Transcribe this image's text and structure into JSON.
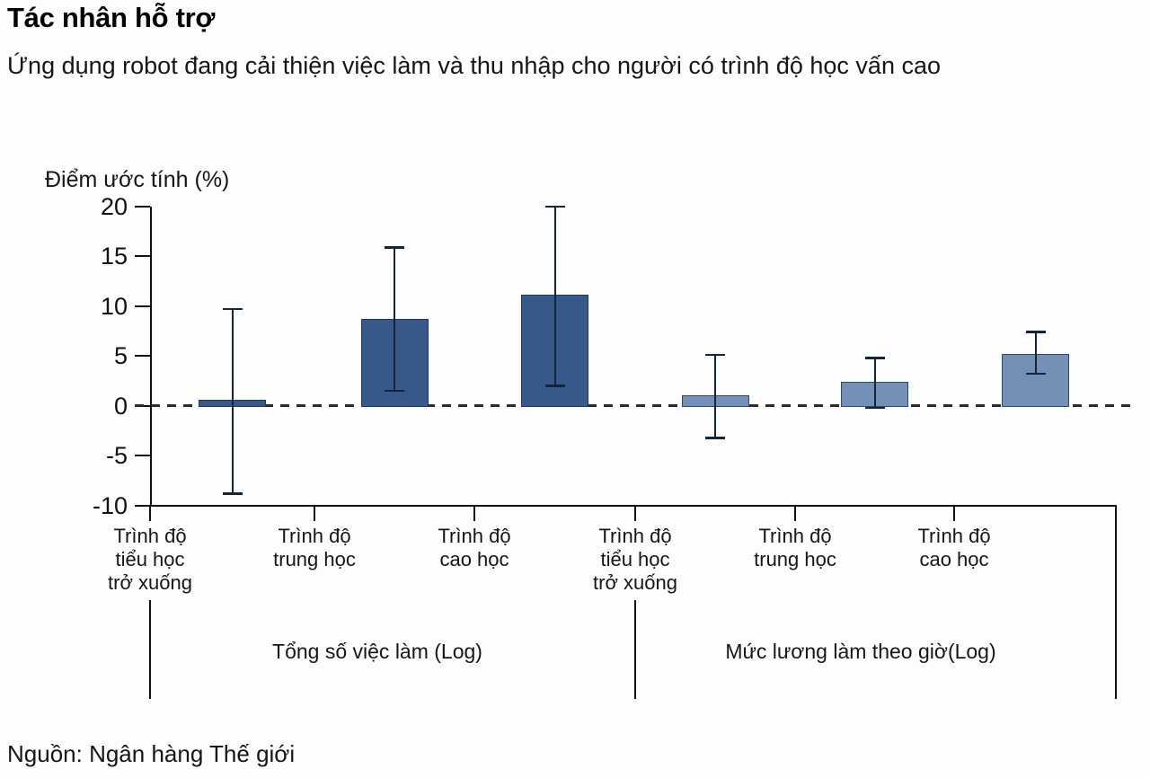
{
  "page": {
    "source": "Nguồn: Ngân hàng Thế giới"
  },
  "chart_data": {
    "type": "bar",
    "title": "Tác nhân hỗ trợ",
    "subtitle": "Ứng dụng robot đang cải thiện việc làm và thu nhập cho người có trình độ học vấn cao",
    "ylabel": "Điểm ước tính (%)",
    "ylim": [
      -10,
      20
    ],
    "yticks": [
      20,
      15,
      10,
      5,
      0,
      -5,
      -10
    ],
    "grid": false,
    "legend": false,
    "zero_line_dashed": true,
    "colors": {
      "bar_group1": "#36598a",
      "bar_group1_border": "#1e3a61",
      "bar_group2": "#7590b6",
      "bar_group2_border": "#2c4a6e",
      "error_bar": "#16243a",
      "axis": "#111111",
      "zero_dash": "#2b2b2b"
    },
    "categories": [
      "Trình độ\ntiểu học\ntrở xuống",
      "Trình độ\ntrung học",
      "Trình độ\ncao học",
      "Trình độ\ntiểu học\ntrở xuống",
      "Trình độ\ntrung học",
      "Trình độ\ncao học"
    ],
    "groups": [
      {
        "label": "Tổng số việc làm (Log)",
        "bar_indexes": [
          0,
          1,
          2
        ]
      },
      {
        "label": "Mức lương làm theo giờ(Log)",
        "bar_indexes": [
          3,
          4,
          5
        ]
      }
    ],
    "bars": [
      {
        "category": "Trình độ tiểu học trở xuống",
        "group": "Tổng số việc làm (Log)",
        "value": 0.6,
        "ci_low": -8.8,
        "ci_high": 9.7,
        "color_key": "bar_group1"
      },
      {
        "category": "Trình độ trung học",
        "group": "Tổng số việc làm (Log)",
        "value": 8.7,
        "ci_low": 1.5,
        "ci_high": 15.9,
        "color_key": "bar_group1"
      },
      {
        "category": "Trình độ cao học",
        "group": "Tổng số việc làm (Log)",
        "value": 11.1,
        "ci_low": 2.0,
        "ci_high": 20.0,
        "color_key": "bar_group1"
      },
      {
        "category": "Trình độ tiểu học trở xuống",
        "group": "Mức lương làm theo giờ(Log)",
        "value": 1.0,
        "ci_low": -3.2,
        "ci_high": 5.1,
        "color_key": "bar_group2"
      },
      {
        "category": "Trình độ trung học",
        "group": "Mức lương làm theo giờ(Log)",
        "value": 2.4,
        "ci_low": -0.2,
        "ci_high": 4.8,
        "color_key": "bar_group2"
      },
      {
        "category": "Trình độ cao học",
        "group": "Mức lương làm theo giờ(Log)",
        "value": 5.2,
        "ci_low": 3.2,
        "ci_high": 7.4,
        "color_key": "bar_group2"
      }
    ]
  }
}
